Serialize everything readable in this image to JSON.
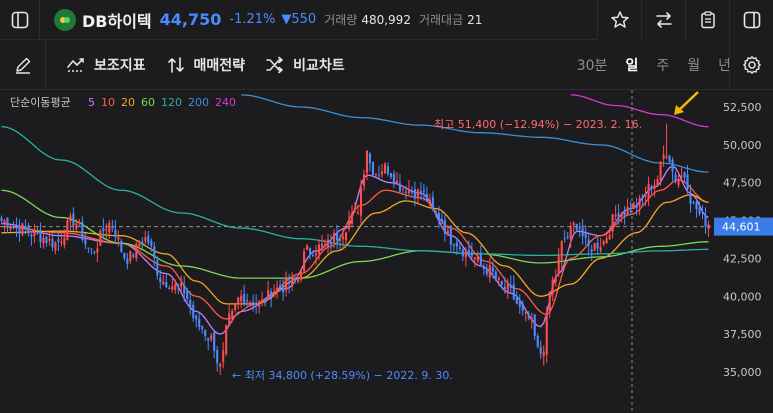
{
  "header": {
    "stock_name": "DB하이텍",
    "price": "44,750",
    "change_rate": "-1.21%",
    "change_amount": "▼550",
    "volume_label": "거래량",
    "volume_value": "480,992",
    "trade_value_label": "거래대금",
    "trade_value_value": "21"
  },
  "toolbar": {
    "indicator_label": "보조지표",
    "strategy_label": "매매전략",
    "compare_label": "비교차트",
    "periods": [
      "30분",
      "일",
      "주",
      "월",
      "년"
    ],
    "active_period": "일"
  },
  "colors": {
    "up": "#ff4d4d",
    "down": "#4a8cff",
    "background": "#1c1c1e",
    "ma5": "#c77dff",
    "ma10": "#ff5a4e",
    "ma20": "#f5a623",
    "ma60": "#7ed957",
    "ma120": "#2ab0a0",
    "ma200": "#3b8fd6",
    "ma240": "#d23ad2",
    "current_price_tag": "#3b7de8",
    "arrow": "#f5b800"
  },
  "chart_data": {
    "type": "candlestick",
    "title": "단순이동평균",
    "ma_periods": [
      "5",
      "10",
      "20",
      "60",
      "120",
      "200",
      "240"
    ],
    "ylim": [
      34000,
      53500
    ],
    "y_ticks": [
      "52,500",
      "50,000",
      "47,500",
      "45,000",
      "42,500",
      "40,000",
      "37,500",
      "35,000"
    ],
    "current_price_tag": "44,601",
    "annotations": {
      "high": "최고 51,400 (−12.94%) − 2023. 2. 16.",
      "low": "← 최저 34,800 (+28.59%) − 2022. 9. 30."
    },
    "close_anchors": [
      [
        0,
        45000
      ],
      [
        6,
        44500
      ],
      [
        12,
        44000
      ],
      [
        18,
        43500
      ],
      [
        24,
        45000
      ],
      [
        30,
        43000
      ],
      [
        36,
        44800
      ],
      [
        42,
        42500
      ],
      [
        48,
        43800
      ],
      [
        54,
        41000
      ],
      [
        60,
        40500
      ],
      [
        66,
        38000
      ],
      [
        70,
        37200
      ],
      [
        73,
        35300
      ],
      [
        76,
        38500
      ],
      [
        80,
        40000
      ],
      [
        86,
        39500
      ],
      [
        92,
        40500
      ],
      [
        98,
        41000
      ],
      [
        102,
        43000
      ],
      [
        108,
        43300
      ],
      [
        112,
        44000
      ],
      [
        118,
        45300
      ],
      [
        122,
        49000
      ],
      [
        125,
        48200
      ],
      [
        128,
        48500
      ],
      [
        134,
        47200
      ],
      [
        140,
        46800
      ],
      [
        146,
        45200
      ],
      [
        150,
        43800
      ],
      [
        156,
        42800
      ],
      [
        162,
        41800
      ],
      [
        168,
        40500
      ],
      [
        176,
        38500
      ],
      [
        180,
        36000
      ],
      [
        184,
        41000
      ],
      [
        188,
        43800
      ],
      [
        192,
        44800
      ],
      [
        196,
        43200
      ],
      [
        200,
        43500
      ],
      [
        206,
        45500
      ],
      [
        212,
        46000
      ],
      [
        218,
        47500
      ],
      [
        222,
        49600
      ],
      [
        225,
        47800
      ],
      [
        228,
        48000
      ],
      [
        231,
        46000
      ],
      [
        234,
        45200
      ],
      [
        236,
        44750
      ]
    ],
    "ma_anchors": {
      "ma5": [
        [
          0,
          44800
        ],
        [
          20,
          44000
        ],
        [
          40,
          43500
        ],
        [
          55,
          41500
        ],
        [
          65,
          39000
        ],
        [
          73,
          37500
        ],
        [
          80,
          39000
        ],
        [
          95,
          40500
        ],
        [
          105,
          43000
        ],
        [
          115,
          44500
        ],
        [
          122,
          48000
        ],
        [
          130,
          47500
        ],
        [
          140,
          46800
        ],
        [
          150,
          44000
        ],
        [
          160,
          42000
        ],
        [
          170,
          40200
        ],
        [
          180,
          38000
        ],
        [
          186,
          41500
        ],
        [
          192,
          44300
        ],
        [
          200,
          44000
        ],
        [
          210,
          45800
        ],
        [
          218,
          47200
        ],
        [
          224,
          48600
        ],
        [
          230,
          46800
        ],
        [
          236,
          45200
        ]
      ],
      "ma10": [
        [
          0,
          44600
        ],
        [
          20,
          44200
        ],
        [
          40,
          43500
        ],
        [
          55,
          42000
        ],
        [
          65,
          40000
        ],
        [
          75,
          38500
        ],
        [
          85,
          39500
        ],
        [
          100,
          41500
        ],
        [
          110,
          43300
        ],
        [
          120,
          46000
        ],
        [
          128,
          47000
        ],
        [
          140,
          46500
        ],
        [
          150,
          44500
        ],
        [
          162,
          42300
        ],
        [
          172,
          40500
        ],
        [
          182,
          38800
        ],
        [
          190,
          42500
        ],
        [
          200,
          44000
        ],
        [
          210,
          45400
        ],
        [
          220,
          47000
        ],
        [
          226,
          47700
        ],
        [
          236,
          46200
        ]
      ],
      "ma20": [
        [
          0,
          44200
        ],
        [
          20,
          44300
        ],
        [
          40,
          44000
        ],
        [
          55,
          42800
        ],
        [
          65,
          41000
        ],
        [
          75,
          39500
        ],
        [
          85,
          39500
        ],
        [
          100,
          41200
        ],
        [
          112,
          43000
        ],
        [
          125,
          45500
        ],
        [
          135,
          46300
        ],
        [
          145,
          45800
        ],
        [
          155,
          44200
        ],
        [
          168,
          42000
        ],
        [
          180,
          40000
        ],
        [
          190,
          40800
        ],
        [
          200,
          42500
        ],
        [
          212,
          44200
        ],
        [
          222,
          46200
        ],
        [
          230,
          46700
        ],
        [
          236,
          46200
        ]
      ],
      "ma60": [
        [
          0,
          47000
        ],
        [
          20,
          45200
        ],
        [
          40,
          43500
        ],
        [
          60,
          42000
        ],
        [
          80,
          41200
        ],
        [
          100,
          41200
        ],
        [
          120,
          42300
        ],
        [
          140,
          43000
        ],
        [
          160,
          42800
        ],
        [
          180,
          42200
        ],
        [
          200,
          42600
        ],
        [
          220,
          43300
        ],
        [
          236,
          43600
        ]
      ],
      "ma120": [
        [
          0,
          51200
        ],
        [
          20,
          49000
        ],
        [
          40,
          47000
        ],
        [
          60,
          45500
        ],
        [
          80,
          44500
        ],
        [
          100,
          43800
        ],
        [
          120,
          43300
        ],
        [
          140,
          43000
        ],
        [
          160,
          42800
        ],
        [
          180,
          42700
        ],
        [
          200,
          42800
        ],
        [
          220,
          43000
        ],
        [
          236,
          43100
        ]
      ],
      "ma200": [
        [
          80,
          53300
        ],
        [
          100,
          52500
        ],
        [
          120,
          51800
        ],
        [
          140,
          51300
        ],
        [
          160,
          50800
        ],
        [
          180,
          50500
        ],
        [
          200,
          50000
        ],
        [
          220,
          48800
        ],
        [
          236,
          48200
        ]
      ],
      "ma240": [
        [
          190,
          53300
        ],
        [
          205,
          52600
        ],
        [
          220,
          52000
        ],
        [
          236,
          51200
        ]
      ]
    }
  }
}
